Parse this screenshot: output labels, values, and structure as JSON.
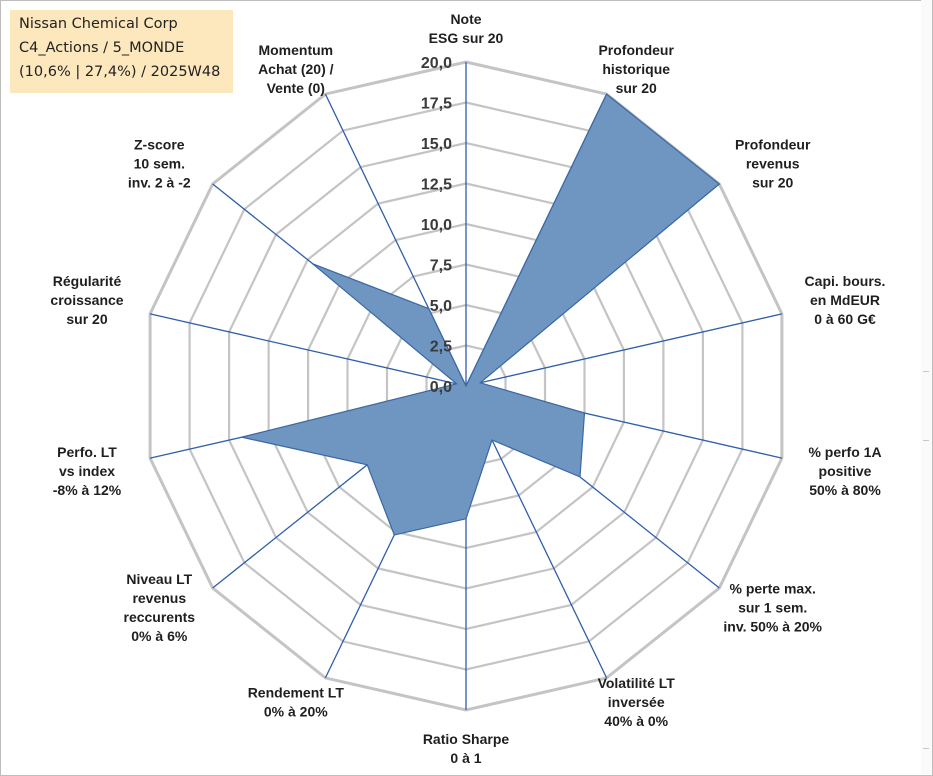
{
  "title_box": {
    "line1": "Nissan Chemical Corp",
    "line2": "C4_Actions / 5_MONDE",
    "line3": "(10,6% | 27,4%) / 2025W48"
  },
  "colors": {
    "fill": "#6f95c1",
    "stroke": "#3a68a4",
    "grid": "#c4c4c4",
    "axis": "#2f5faa"
  },
  "chart_data": {
    "type": "radar",
    "title": "Nissan Chemical Corp",
    "rmin": 0,
    "rmax": 20,
    "tick_labels": [
      "0,0",
      "2,5",
      "5,0",
      "7,5",
      "10,0",
      "12,5",
      "15,0",
      "17,5",
      "20,0"
    ],
    "axes": [
      {
        "label": [
          "Note",
          "ESG sur 20"
        ],
        "value": 0
      },
      {
        "label": [
          "Profondeur",
          "historique",
          "sur 20"
        ],
        "value": 20
      },
      {
        "label": [
          "Profondeur",
          "revenus",
          "sur 20"
        ],
        "value": 20
      },
      {
        "label": [
          "Capi. bours.",
          "en MdEUR",
          "0 à 60 G€"
        ],
        "value": 0.9
      },
      {
        "label": [
          "% perfo 1A",
          "positive",
          "50% à 80%"
        ],
        "value": 7.5
      },
      {
        "label": [
          "% perte max.",
          "sur 1 sem.",
          "inv. 50% à 20%"
        ],
        "value": 9
      },
      {
        "label": [
          "Volatilité LT",
          "inversée",
          "40% à 0%"
        ],
        "value": 3.7
      },
      {
        "label": [
          "Ratio Sharpe",
          "0 à 1"
        ],
        "value": 8.2
      },
      {
        "label": [
          "Rendement LT",
          "0% à 20%"
        ],
        "value": 10.2
      },
      {
        "label": [
          "Niveau LT",
          "revenus",
          "reccurents",
          "0% à 6%"
        ],
        "value": 7.8
      },
      {
        "label": [
          "Perfo. LT",
          "vs index",
          "-8% à 12%"
        ],
        "value": 14.2
      },
      {
        "label": [
          "Régularité",
          "croissance",
          "sur 20"
        ],
        "value": 0.6
      },
      {
        "label": [
          "Z-score",
          "10 sem.",
          "inv. 2 à -2"
        ],
        "value": 12.1
      },
      {
        "label": [
          "Momentum",
          "Achat (20) /",
          "Vente (0)"
        ],
        "value": 5.3
      }
    ]
  }
}
